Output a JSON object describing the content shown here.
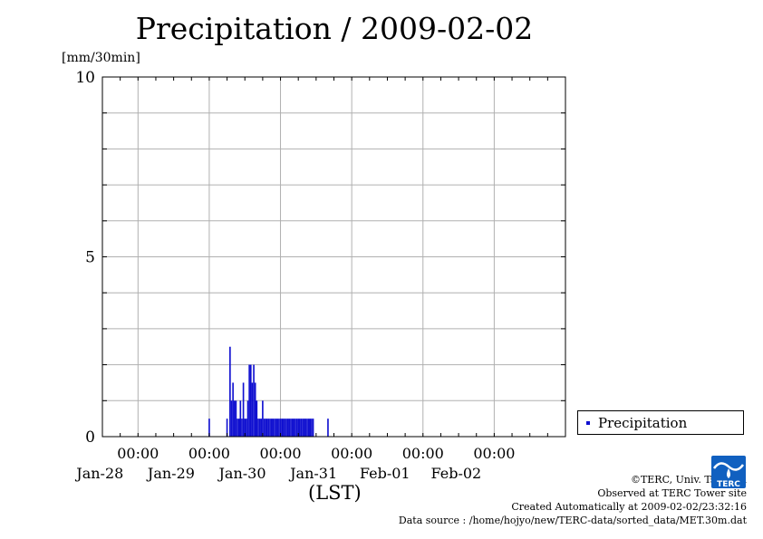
{
  "chart_data": {
    "type": "bar",
    "title": "Precipitation / 2009-02-02",
    "ylabel": "[mm/30min]",
    "xlabel": "(LST)",
    "ylim": [
      0,
      10
    ],
    "yticks": [
      "0",
      "5",
      "10"
    ],
    "xlim": [
      "2009-01-27 12:00",
      "2009-02-02 24:00"
    ],
    "xticks": [
      {
        "time": "2009-01-28 00:00",
        "label_time": "00:00",
        "label_date": "Jan-28"
      },
      {
        "time": "2009-01-29 00:00",
        "label_time": "00:00",
        "label_date": "Jan-29"
      },
      {
        "time": "2009-01-30 00:00",
        "label_time": "00:00",
        "label_date": "Jan-30"
      },
      {
        "time": "2009-01-31 00:00",
        "label_time": "00:00",
        "label_date": "Jan-31"
      },
      {
        "time": "2009-02-01 00:00",
        "label_time": "00:00",
        "label_date": "Feb-01"
      },
      {
        "time": "2009-02-02 00:00",
        "label_time": "00:00",
        "label_date": "Feb-02"
      }
    ],
    "grid": true,
    "legend_position": "right",
    "series": [
      {
        "name": "Precipitation",
        "color": "#1010d0",
        "x": [
          "2009-01-29 00:00",
          "2009-01-29 06:00",
          "2009-01-29 07:00",
          "2009-01-29 07:30",
          "2009-01-29 08:00",
          "2009-01-29 08:30",
          "2009-01-29 09:00",
          "2009-01-29 09:30",
          "2009-01-29 10:00",
          "2009-01-29 10:30",
          "2009-01-29 11:00",
          "2009-01-29 11:30",
          "2009-01-29 12:00",
          "2009-01-29 12:30",
          "2009-01-29 13:00",
          "2009-01-29 13:30",
          "2009-01-29 14:00",
          "2009-01-29 14:30",
          "2009-01-29 15:00",
          "2009-01-29 15:30",
          "2009-01-29 16:00",
          "2009-01-29 16:30",
          "2009-01-29 17:00",
          "2009-01-29 17:30",
          "2009-01-29 18:00",
          "2009-01-29 18:30",
          "2009-01-29 19:00",
          "2009-01-29 19:30",
          "2009-01-29 20:00",
          "2009-01-29 20:30",
          "2009-01-29 21:00",
          "2009-01-29 21:30",
          "2009-01-29 22:00",
          "2009-01-29 22:30",
          "2009-01-29 23:00",
          "2009-01-29 23:30",
          "2009-01-30 00:00",
          "2009-01-30 00:30",
          "2009-01-30 01:00",
          "2009-01-30 01:30",
          "2009-01-30 02:00",
          "2009-01-30 02:30",
          "2009-01-30 03:00",
          "2009-01-30 03:30",
          "2009-01-30 04:00",
          "2009-01-30 04:30",
          "2009-01-30 05:00",
          "2009-01-30 05:30",
          "2009-01-30 06:00",
          "2009-01-30 06:30",
          "2009-01-30 07:00",
          "2009-01-30 07:30",
          "2009-01-30 08:00",
          "2009-01-30 08:30",
          "2009-01-30 09:00",
          "2009-01-30 09:30",
          "2009-01-30 10:00",
          "2009-01-30 10:30",
          "2009-01-30 11:00",
          "2009-01-30 16:00"
        ],
        "values": [
          0.5,
          0.5,
          2.5,
          1.0,
          1.5,
          1.0,
          1.0,
          0.5,
          0.5,
          1.0,
          0.5,
          1.5,
          0.5,
          0.5,
          1.0,
          2.0,
          2.0,
          1.5,
          2.0,
          1.5,
          1.0,
          0.5,
          0.5,
          0.5,
          1.0,
          0.5,
          0.5,
          0.5,
          0.5,
          0.5,
          0.5,
          0.5,
          0.5,
          0.5,
          0.5,
          0.5,
          0.5,
          0.5,
          0.5,
          0.5,
          0.5,
          0.5,
          0.5,
          0.5,
          0.5,
          0.5,
          0.5,
          0.5,
          0.5,
          0.5,
          0.5,
          0.5,
          0.5,
          0.5,
          0.5,
          0.5,
          0.5,
          0.5,
          0.5,
          0.5
        ]
      }
    ]
  },
  "legend": {
    "label": "Precipitation"
  },
  "credits": {
    "line1": "©TERC, Univ. Tsukuba",
    "line2": "Observed at TERC Tower site",
    "line3": "Created Automatically at 2009-02-02/23:32:16",
    "line4": "Data source : /home/hojyo/new/TERC-data/sorted_data/MET.30m.dat"
  },
  "logo": {
    "text": "TERC",
    "color": "#1060c0"
  }
}
